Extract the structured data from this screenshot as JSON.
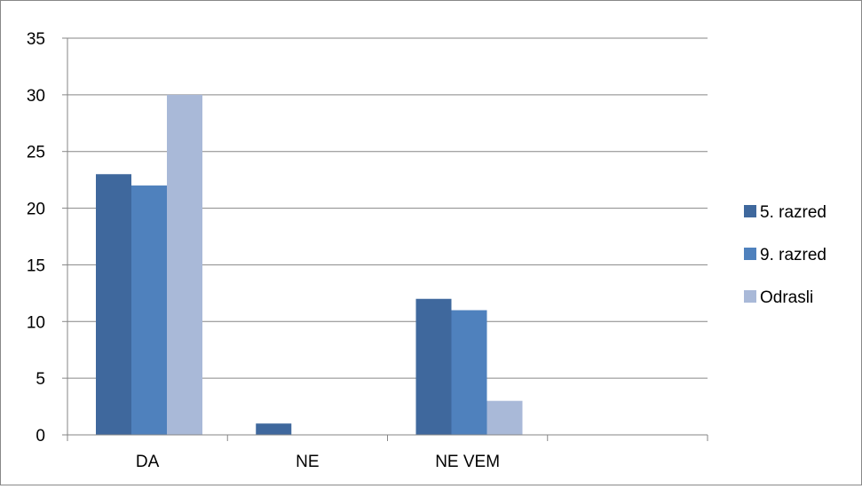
{
  "chart_data": {
    "type": "bar",
    "title": "",
    "xlabel": "",
    "ylabel": "",
    "categories": [
      "DA",
      "NE",
      "NE VEM",
      ""
    ],
    "series": [
      {
        "name": "5. razred",
        "values": [
          23,
          1,
          12,
          0
        ],
        "color": "#3F689D"
      },
      {
        "name": "9. razred",
        "values": [
          22,
          0,
          11,
          0
        ],
        "color": "#4F81BD"
      },
      {
        "name": "Odrasli",
        "values": [
          30,
          0,
          3,
          0
        ],
        "color": "#A9B9D8"
      }
    ],
    "ylim": [
      0,
      35
    ],
    "yticks": [
      0,
      5,
      10,
      15,
      20,
      25,
      30,
      35
    ],
    "grid": true,
    "legend_position": "right",
    "gridline_color": "#868686"
  }
}
